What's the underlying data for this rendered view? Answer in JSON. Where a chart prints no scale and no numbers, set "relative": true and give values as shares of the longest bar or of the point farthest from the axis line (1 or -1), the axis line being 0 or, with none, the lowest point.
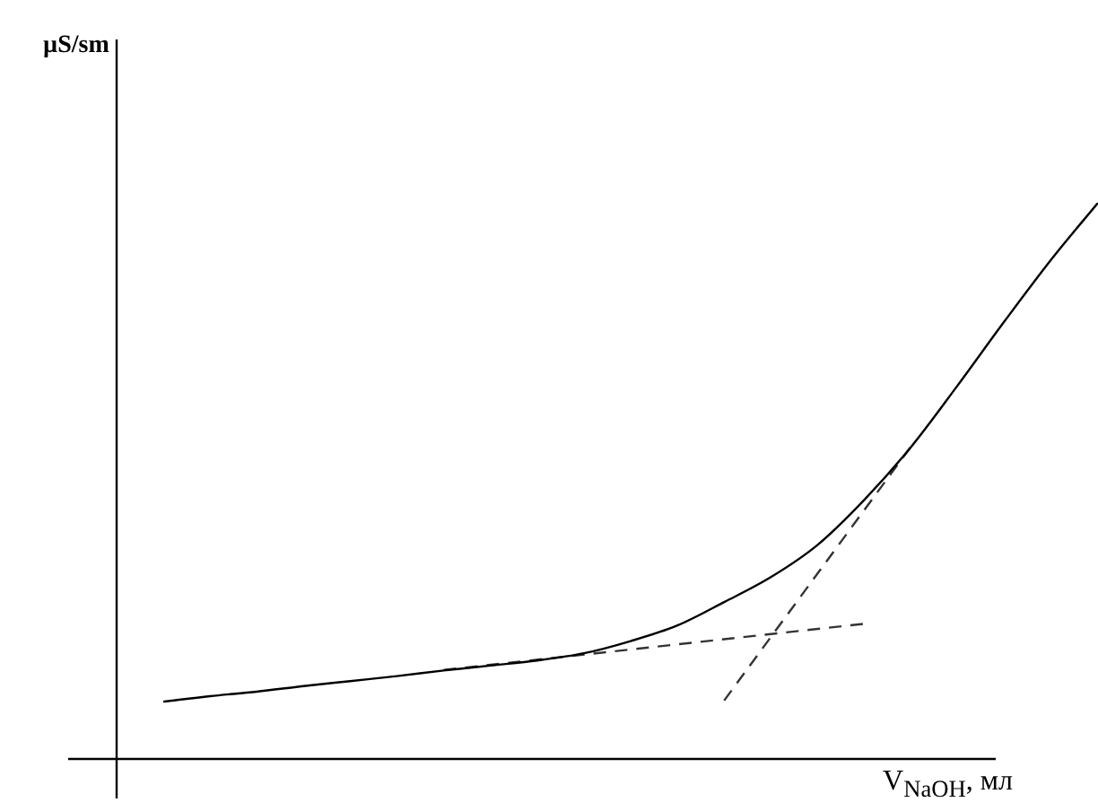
{
  "chart_data": {
    "type": "line",
    "relative": true,
    "annotations": [
      "µS/sm"
    ],
    "xlabel": "V$_{NaOH}$, мл",
    "legend": false,
    "marker": "none",
    "categories": [
      null,
      null,
      null,
      null,
      null,
      null,
      null,
      null,
      null,
      null,
      null,
      null,
      null,
      null,
      null,
      null,
      null,
      null,
      null,
      null,
      null,
      null
    ],
    "series": [
      {
        "color": "#000000",
        "line_style": "solid",
        "values": [
          null,
          0.103,
          0.113,
          0.121,
          0.131,
          0.14,
          0.149,
          0.159,
          0.168,
          0.177,
          0.19,
          0.212,
          0.24,
          0.282,
          0.327,
          0.385,
          0.466,
          0.561,
          0.672,
          0.787,
          0.898,
          1
        ]
      },
      {
        "color": "#333333",
        "line_style": "dashed",
        "values": [
          null,
          null,
          null,
          null,
          null,
          null,
          null,
          0.16,
          null,
          null,
          null,
          null,
          null,
          null,
          null,
          null,
          0.243,
          null,
          null,
          null,
          null,
          null
        ]
      },
      {
        "color": "#333333",
        "line_style": "dashed",
        "values": [
          null,
          null,
          null,
          null,
          null,
          null,
          null,
          null,
          null,
          null,
          null,
          null,
          null,
          0.105,
          null,
          null,
          null,
          0.562,
          null,
          null,
          null,
          null
        ]
      }
    ]
  }
}
